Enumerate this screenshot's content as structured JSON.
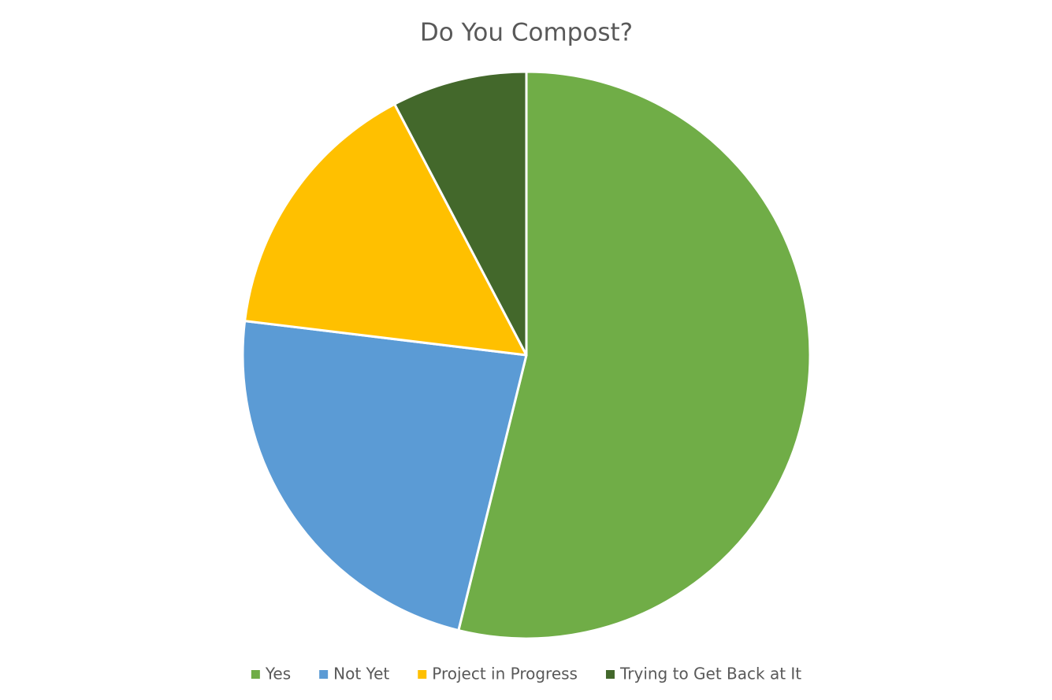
{
  "chart_data": {
    "type": "pie",
    "title": "Do You Compost?",
    "categories": [
      "Yes",
      "Not Yet",
      "Project in Progress",
      "Trying to Get Back at It"
    ],
    "values": [
      7,
      3,
      2,
      1
    ],
    "colors": [
      "#70ad47",
      "#5b9bd5",
      "#ffc000",
      "#43682b"
    ],
    "legend": "bottom"
  }
}
